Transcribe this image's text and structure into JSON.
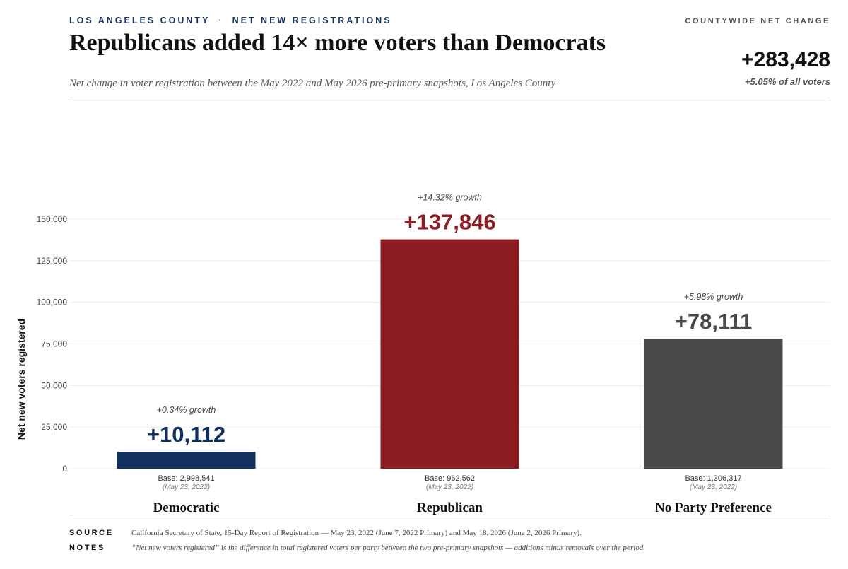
{
  "header": {
    "kicker_left": "LOS ANGELES COUNTY",
    "kicker_sep": "·",
    "kicker_right": "NET NEW REGISTRATIONS",
    "title": "Republicans added 14× more voters than Democrats",
    "subtitle": "Net change in voter registration between the May 2022 and May 2026 pre-primary snapshots, Los Angeles County"
  },
  "kpi": {
    "label": "COUNTYWIDE NET CHANGE",
    "value": "+283,428",
    "pct": "+5.05% of all voters"
  },
  "chart_data": {
    "type": "bar",
    "title": "Republicans added 14× more voters than Democrats",
    "ylabel": "Net new voters registered",
    "ylim": [
      0,
      150000
    ],
    "yticks": [
      0,
      25000,
      50000,
      75000,
      100000,
      125000,
      150000
    ],
    "ytick_labels": [
      "0",
      "25,000",
      "50,000",
      "75,000",
      "100,000",
      "125,000",
      "150,000"
    ],
    "grid": true,
    "categories": [
      "Democratic",
      "Republican",
      "No Party Preference"
    ],
    "values": [
      10112,
      137846,
      78111
    ],
    "value_labels": [
      "+10,112",
      "+137,846",
      "+78,111"
    ],
    "growth_labels": [
      "+0.34%  growth",
      "+14.32%  growth",
      "+5.98%  growth"
    ],
    "base_labels": [
      "Base: 2,998,541",
      "Base: 962,562",
      "Base: 1,306,317"
    ],
    "base_dates": [
      "(May 23, 2022)",
      "(May 23, 2022)",
      "(May 23, 2022)"
    ],
    "colors": [
      "#12305e",
      "#8b1d22",
      "#4a4a4a"
    ]
  },
  "footer": {
    "source_label": "SOURCE",
    "source_text": "California Secretary of State, 15-Day Report of Registration — May 23, 2022 (June 7, 2022 Primary) and May 18, 2026 (June 2, 2026 Primary).",
    "notes_label": "NOTES",
    "notes_text": "“Net new voters registered” is the difference in total registered voters per party between the two pre-primary snapshots — additions minus removals over the period."
  }
}
